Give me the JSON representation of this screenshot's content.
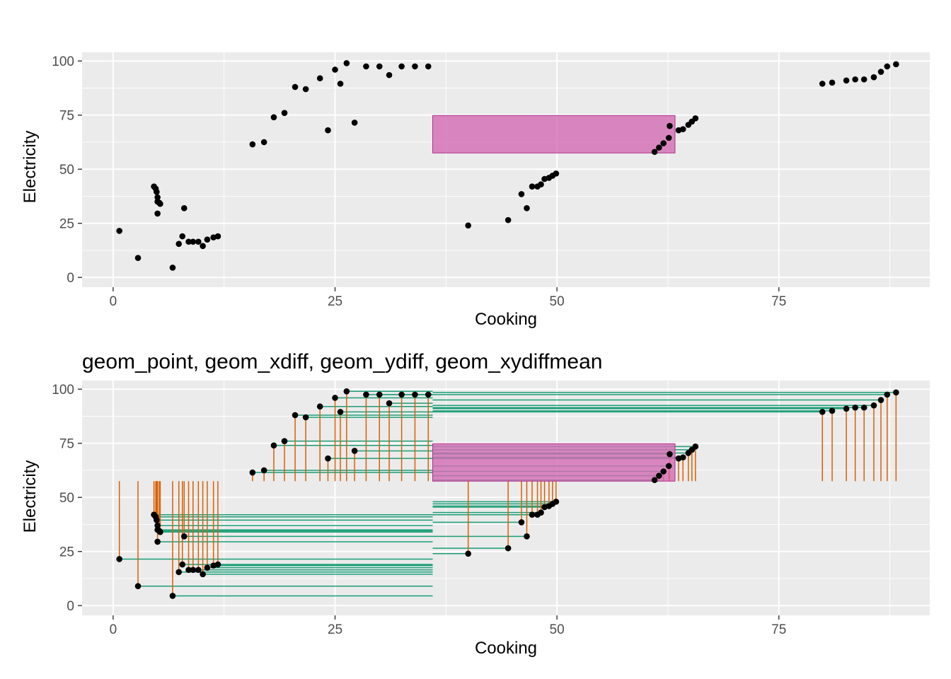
{
  "chart_data": [
    {
      "type": "scatter",
      "title": "",
      "xlabel": "Cooking",
      "ylabel": "Electricity",
      "xlim": [
        -3.5,
        92
      ],
      "ylim": [
        -4.5,
        104
      ],
      "xticks": [
        0,
        25,
        50,
        75
      ],
      "yticks": [
        0,
        25,
        50,
        75,
        100
      ],
      "grid": true,
      "colors": {
        "panel": "#ebebeb",
        "grid": "#ffffff",
        "point": "#000000",
        "rect_fill": "#d36bb4",
        "rect_stroke": "#b0308c"
      },
      "mean_rect": {
        "x": [
          36,
          63.3
        ],
        "y": [
          57.5,
          74.8
        ]
      },
      "points": [
        [
          0.7,
          21.5
        ],
        [
          2.8,
          9
        ],
        [
          4.6,
          42
        ],
        [
          4.8,
          41
        ],
        [
          4.9,
          39.5
        ],
        [
          5,
          37
        ],
        [
          5,
          35
        ],
        [
          5.2,
          34.5
        ],
        [
          5,
          29.5
        ],
        [
          5.3,
          34
        ],
        [
          6.7,
          4.5
        ],
        [
          7.4,
          15.5
        ],
        [
          7.8,
          19
        ],
        [
          8,
          32
        ],
        [
          8.5,
          16.5
        ],
        [
          9,
          16.5
        ],
        [
          9.6,
          16.5
        ],
        [
          10.1,
          14.5
        ],
        [
          10.6,
          17.5
        ],
        [
          11.3,
          18.5
        ],
        [
          11.8,
          19
        ],
        [
          15.7,
          61.5
        ],
        [
          17,
          62.5
        ],
        [
          18.1,
          74
        ],
        [
          19.3,
          76
        ],
        [
          20.5,
          88
        ],
        [
          21.7,
          87
        ],
        [
          23.3,
          92
        ],
        [
          24.2,
          68
        ],
        [
          25,
          96
        ],
        [
          25.6,
          89.5
        ],
        [
          26.3,
          99
        ],
        [
          27.2,
          71.5
        ],
        [
          28.5,
          97.5
        ],
        [
          30,
          97.5
        ],
        [
          31.1,
          93.5
        ],
        [
          32.5,
          97.5
        ],
        [
          34,
          97.5
        ],
        [
          35.5,
          97.5
        ],
        [
          40,
          24
        ],
        [
          44.5,
          26.5
        ],
        [
          46,
          38.5
        ],
        [
          46.6,
          32
        ],
        [
          47.2,
          42
        ],
        [
          47.8,
          42
        ],
        [
          48.2,
          43
        ],
        [
          48.6,
          45.5
        ],
        [
          49.1,
          46
        ],
        [
          49.5,
          47
        ],
        [
          49.9,
          48
        ],
        [
          61,
          58
        ],
        [
          61.5,
          60
        ],
        [
          62,
          62
        ],
        [
          62.6,
          64.5
        ],
        [
          62.7,
          70
        ],
        [
          63.7,
          68
        ],
        [
          64.2,
          68.5
        ],
        [
          64.8,
          70.5
        ],
        [
          65.2,
          72
        ],
        [
          65.6,
          73.5
        ],
        [
          79.9,
          89.5
        ],
        [
          81,
          90
        ],
        [
          82.6,
          91
        ],
        [
          83.6,
          91.5
        ],
        [
          84.6,
          91.5
        ],
        [
          85.7,
          92.5
        ],
        [
          86.5,
          95
        ],
        [
          87.2,
          97.5
        ],
        [
          88.2,
          98.5
        ]
      ]
    },
    {
      "type": "scatter",
      "title": "geom_point, geom_xdiff, geom_ydiff, geom_xydiffmean",
      "xlabel": "Cooking",
      "ylabel": "Electricity",
      "xlim": [
        -3.5,
        92
      ],
      "ylim": [
        -4.5,
        104
      ],
      "xticks": [
        0,
        25,
        50,
        75
      ],
      "yticks": [
        0,
        25,
        50,
        75,
        100
      ],
      "grid": true,
      "colors": {
        "panel": "#ebebeb",
        "grid": "#ffffff",
        "point": "#000000",
        "xdiff": "#1b9e77",
        "ydiff": "#d95f02",
        "rect_fill": "#d36bb4",
        "rect_stroke": "#b0308c"
      },
      "mean_x": 36,
      "mean_y": 57.5,
      "mean_rect": {
        "x": [
          36,
          63.3
        ],
        "y": [
          57.5,
          74.8
        ]
      },
      "points": [
        [
          0.7,
          21.5
        ],
        [
          2.8,
          9
        ],
        [
          4.6,
          42
        ],
        [
          4.8,
          41
        ],
        [
          4.9,
          39.5
        ],
        [
          5,
          37
        ],
        [
          5,
          35
        ],
        [
          5.2,
          34.5
        ],
        [
          5,
          29.5
        ],
        [
          5.3,
          34
        ],
        [
          6.7,
          4.5
        ],
        [
          7.4,
          15.5
        ],
        [
          7.8,
          19
        ],
        [
          8,
          32
        ],
        [
          8.5,
          16.5
        ],
        [
          9,
          16.5
        ],
        [
          9.6,
          16.5
        ],
        [
          10.1,
          14.5
        ],
        [
          10.6,
          17.5
        ],
        [
          11.3,
          18.5
        ],
        [
          11.8,
          19
        ],
        [
          15.7,
          61.5
        ],
        [
          17,
          62.5
        ],
        [
          18.1,
          74
        ],
        [
          19.3,
          76
        ],
        [
          20.5,
          88
        ],
        [
          21.7,
          87
        ],
        [
          23.3,
          92
        ],
        [
          24.2,
          68
        ],
        [
          25,
          96
        ],
        [
          25.6,
          89.5
        ],
        [
          26.3,
          99
        ],
        [
          27.2,
          71.5
        ],
        [
          28.5,
          97.5
        ],
        [
          30,
          97.5
        ],
        [
          31.1,
          93.5
        ],
        [
          32.5,
          97.5
        ],
        [
          34,
          97.5
        ],
        [
          35.5,
          97.5
        ],
        [
          40,
          24
        ],
        [
          44.5,
          26.5
        ],
        [
          46,
          38.5
        ],
        [
          46.6,
          32
        ],
        [
          47.2,
          42
        ],
        [
          47.8,
          42
        ],
        [
          48.2,
          43
        ],
        [
          48.6,
          45.5
        ],
        [
          49.1,
          46
        ],
        [
          49.5,
          47
        ],
        [
          49.9,
          48
        ],
        [
          61,
          58
        ],
        [
          61.5,
          60
        ],
        [
          62,
          62
        ],
        [
          62.6,
          64.5
        ],
        [
          62.7,
          70
        ],
        [
          63.7,
          68
        ],
        [
          64.2,
          68.5
        ],
        [
          64.8,
          70.5
        ],
        [
          65.2,
          72
        ],
        [
          65.6,
          73.5
        ],
        [
          79.9,
          89.5
        ],
        [
          81,
          90
        ],
        [
          82.6,
          91
        ],
        [
          83.6,
          91.5
        ],
        [
          84.6,
          91.5
        ],
        [
          85.7,
          92.5
        ],
        [
          86.5,
          95
        ],
        [
          87.2,
          97.5
        ],
        [
          88.2,
          98.5
        ]
      ]
    }
  ]
}
